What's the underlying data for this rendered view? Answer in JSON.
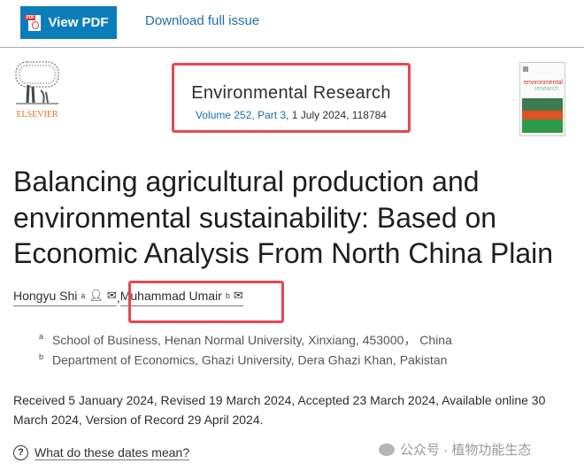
{
  "toolbar": {
    "view_pdf": "View PDF",
    "download": "Download full issue",
    "pdf_icon": "pdf-file-icon"
  },
  "publisher": {
    "name": "ELSEVIER"
  },
  "journal": {
    "title": "Environmental Research",
    "volume_link": "Volume 252, Part 3",
    "meta_rest": ", 1 July 2024, 118784",
    "cover_title_1": "environmental",
    "cover_title_2": "research"
  },
  "article": {
    "title": "Balancing agricultural production and environmental sustainability: Based on Economic Analysis From North China Plain"
  },
  "authors": [
    {
      "name": "Hongyu Shi",
      "sup": "a",
      "icons": [
        "person-icon",
        "envelope-icon"
      ]
    },
    {
      "name": "Muhammad Umair",
      "sup": "b",
      "icons": [
        "envelope-icon"
      ]
    }
  ],
  "affiliations": [
    {
      "sup": "a",
      "text": "School of Business, Henan Normal University, Xinxiang, 453000，  China"
    },
    {
      "sup": "b",
      "text": "Department of Economics, Ghazi University, Dera Ghazi Khan, Pakistan"
    }
  ],
  "dates": {
    "text": "Received 5 January 2024, Revised 19 March 2024, Accepted 23 March 2024, Available online 30 March 2024, Version of Record 29 April 2024.",
    "help": "What do these dates mean?",
    "help_icon": "?"
  },
  "watermark": {
    "text": "公众号 · 植物功能生态"
  },
  "colors": {
    "accent": "#0c7dbb",
    "link": "#1f6fa6",
    "highlight": "#e8474f",
    "elsevier": "#e9711c"
  }
}
